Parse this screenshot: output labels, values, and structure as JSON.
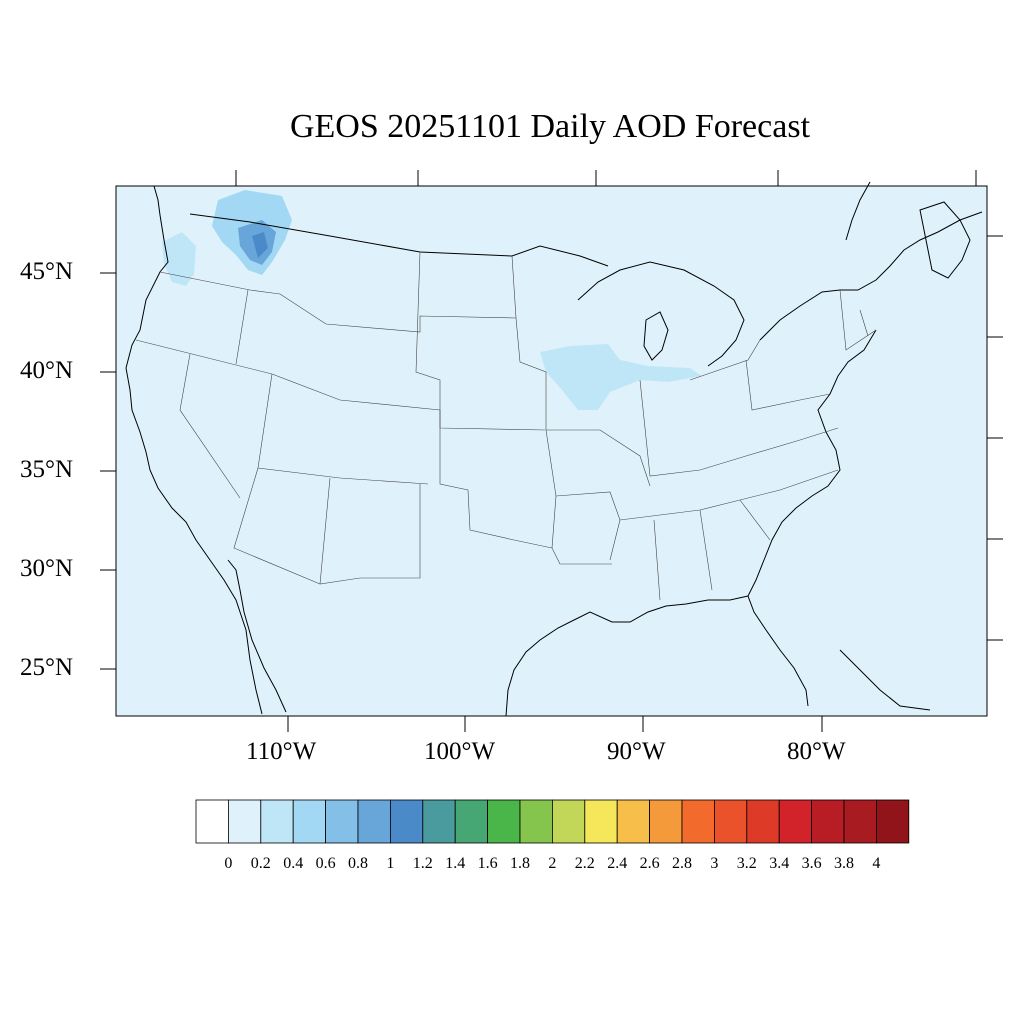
{
  "title": "GEOS 20251101 Daily AOD Forecast",
  "map": {
    "background_color": "#dff2fb",
    "lat_labels": [
      "45°N",
      "40°N",
      "35°N",
      "30°N",
      "25°N"
    ],
    "lon_labels": [
      "110°W",
      "100°W",
      "90°W",
      "80°W"
    ]
  },
  "colorbar": {
    "colors": [
      "#ffffff",
      "#dff2fb",
      "#bfe6f7",
      "#a2d8f3",
      "#83bfe6",
      "#68a6da",
      "#4a8ac8",
      "#4a9b9e",
      "#46a674",
      "#4ab548",
      "#86c54d",
      "#c2d657",
      "#f5e65a",
      "#f7be49",
      "#f59a3b",
      "#f26a2c",
      "#e9522b",
      "#dd3a28",
      "#d2222a",
      "#b81c25",
      "#a71b21",
      "#91141b"
    ],
    "labels": [
      "0",
      "0.2",
      "0.4",
      "0.6",
      "0.8",
      "1",
      "1.2",
      "1.4",
      "1.6",
      "1.8",
      "2",
      "2.2",
      "2.4",
      "2.6",
      "2.8",
      "3",
      "3.2",
      "3.4",
      "3.6",
      "3.8",
      "4"
    ]
  }
}
